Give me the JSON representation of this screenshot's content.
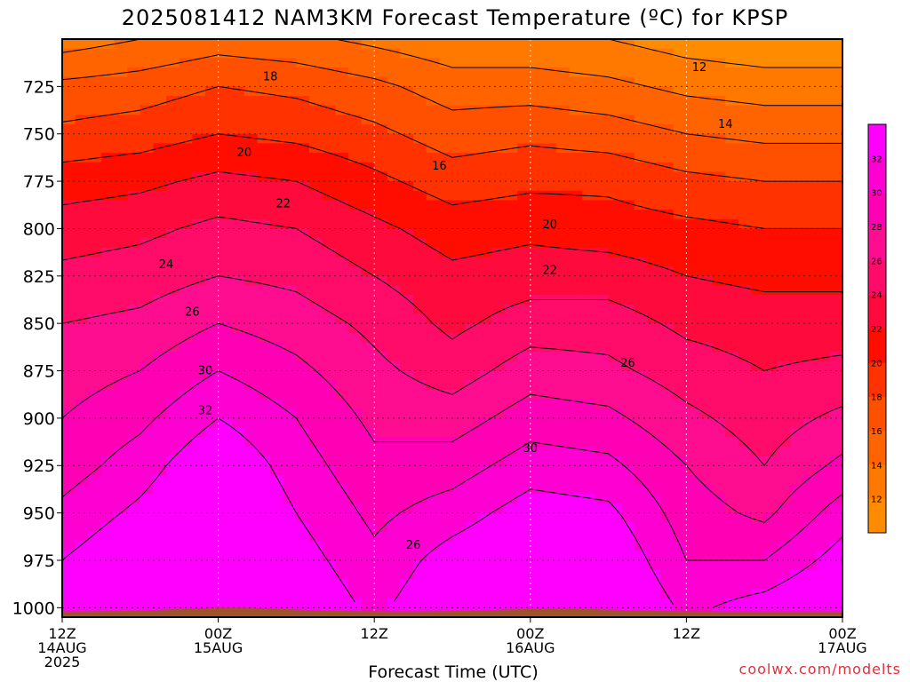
{
  "chart_data": {
    "type": "heatmap",
    "title": "2025081412 NAM3KM Forecast Temperature (ºC) for KPSP",
    "xlabel": "Forecast Time (UTC)",
    "ylabel": "",
    "credit": "coolwx.com/modelts",
    "y_axis": {
      "reversed": true,
      "ticks": [
        725,
        750,
        775,
        800,
        825,
        850,
        875,
        900,
        925,
        950,
        975,
        1000
      ],
      "ylim": [
        1005,
        700
      ],
      "units": "hPa (not printed)"
    },
    "x_axis": {
      "ticks": [
        {
          "line1": "12Z",
          "line2": "14AUG",
          "line3": "2025",
          "hour": 0
        },
        {
          "line1": "00Z",
          "line2": "15AUG",
          "line3": "",
          "hour": 12
        },
        {
          "line1": "12Z",
          "line2": "",
          "line3": "",
          "hour": 24
        },
        {
          "line1": "00Z",
          "line2": "16AUG",
          "line3": "",
          "hour": 36
        },
        {
          "line1": "12Z",
          "line2": "",
          "line3": "",
          "hour": 48
        },
        {
          "line1": "00Z",
          "line2": "17AUG",
          "line3": "",
          "hour": 60
        }
      ],
      "xlim": [
        0,
        60
      ]
    },
    "grid": true,
    "colorbar": {
      "position": "right",
      "levels": [
        10,
        12,
        14,
        16,
        18,
        20,
        22,
        24,
        26,
        28,
        30,
        32,
        34
      ],
      "labels": [
        12,
        14,
        16,
        18,
        20,
        22,
        24,
        26,
        28,
        30,
        32
      ],
      "colors": [
        "#ff8c00",
        "#ff7800",
        "#ff6400",
        "#ff5000",
        "#ff3200",
        "#ff0d00",
        "#ff0a3c",
        "#ff0c6a",
        "#ff0d90",
        "#ff00b4",
        "#ff00d2",
        "#ff00ff"
      ]
    },
    "contour_labels": [
      {
        "text": "12",
        "hour": 49.0,
        "p": 715
      },
      {
        "text": "14",
        "hour": 51.0,
        "p": 745
      },
      {
        "text": "16",
        "hour": 29.0,
        "p": 767
      },
      {
        "text": "18",
        "hour": 16.0,
        "p": 720
      },
      {
        "text": "20",
        "hour": 14.0,
        "p": 760
      },
      {
        "text": "20",
        "hour": 37.5,
        "p": 798
      },
      {
        "text": "22",
        "hour": 17.0,
        "p": 787
      },
      {
        "text": "22",
        "hour": 37.5,
        "p": 822
      },
      {
        "text": "24",
        "hour": 8.0,
        "p": 819
      },
      {
        "text": "26",
        "hour": 10.0,
        "p": 844
      },
      {
        "text": "26",
        "hour": 43.5,
        "p": 871
      },
      {
        "text": "26",
        "hour": 27.0,
        "p": 967
      },
      {
        "text": "30",
        "hour": 11.0,
        "p": 875
      },
      {
        "text": "30",
        "hour": 36.0,
        "p": 916
      },
      {
        "text": "32",
        "hour": 11.0,
        "p": 896
      }
    ],
    "temperature_profiles": {
      "description": "Approximate temperature (°C) per pressure level at selected forecast hours",
      "levels": [
        700,
        725,
        750,
        775,
        800,
        825,
        850,
        875,
        900,
        925,
        950,
        975,
        1000
      ],
      "series": [
        {
          "hour": 0,
          "values": [
            13,
            16.5,
            18.5,
            21,
            23,
            24.5,
            26,
            27,
            28,
            29,
            30.5,
            32,
            34
          ]
        },
        {
          "hour": 6,
          "values": [
            14,
            17,
            19,
            21.5,
            23.5,
            25,
            26.5,
            28,
            29.5,
            31,
            32.5,
            34,
            35
          ]
        },
        {
          "hour": 12,
          "values": [
            15,
            18,
            20,
            22.5,
            24.5,
            26,
            28,
            30,
            32,
            34,
            35,
            36,
            36
          ]
        },
        {
          "hour": 18,
          "values": [
            14.5,
            17.5,
            19.5,
            22,
            24,
            25.5,
            27,
            28.5,
            30,
            31,
            32,
            33,
            34
          ]
        },
        {
          "hour": 24,
          "values": [
            13.5,
            16.5,
            18.5,
            20.5,
            22.5,
            24,
            25.5,
            26.5,
            27.5,
            28.5,
            29.5,
            30.5,
            31.5
          ]
        },
        {
          "hour": 30,
          "values": [
            12.5,
            15,
            17,
            19,
            21,
            22.5,
            23.5,
            25,
            27,
            29,
            31,
            33,
            34
          ]
        },
        {
          "hour": 36,
          "values": [
            12.5,
            15,
            17.5,
            19.5,
            21.5,
            23,
            25,
            27,
            29,
            31,
            33,
            34.5,
            36
          ]
        },
        {
          "hour": 42,
          "values": [
            12,
            14.5,
            17,
            19.5,
            21,
            23,
            25,
            26.5,
            28.5,
            30.5,
            32.5,
            34,
            35
          ]
        },
        {
          "hour": 48,
          "values": [
            11,
            13.5,
            16,
            18.5,
            20.5,
            22,
            23.5,
            25,
            26.5,
            28,
            29,
            30,
            31.5
          ]
        },
        {
          "hour": 54,
          "values": [
            10.5,
            13,
            15.5,
            18,
            20,
            21.5,
            23,
            24,
            25,
            26,
            27.5,
            30,
            33
          ]
        },
        {
          "hour": 60,
          "values": [
            10.5,
            13,
            15.5,
            18,
            20,
            21.5,
            23,
            24.5,
            26.5,
            28.5,
            31,
            33,
            35
          ]
        }
      ]
    }
  }
}
